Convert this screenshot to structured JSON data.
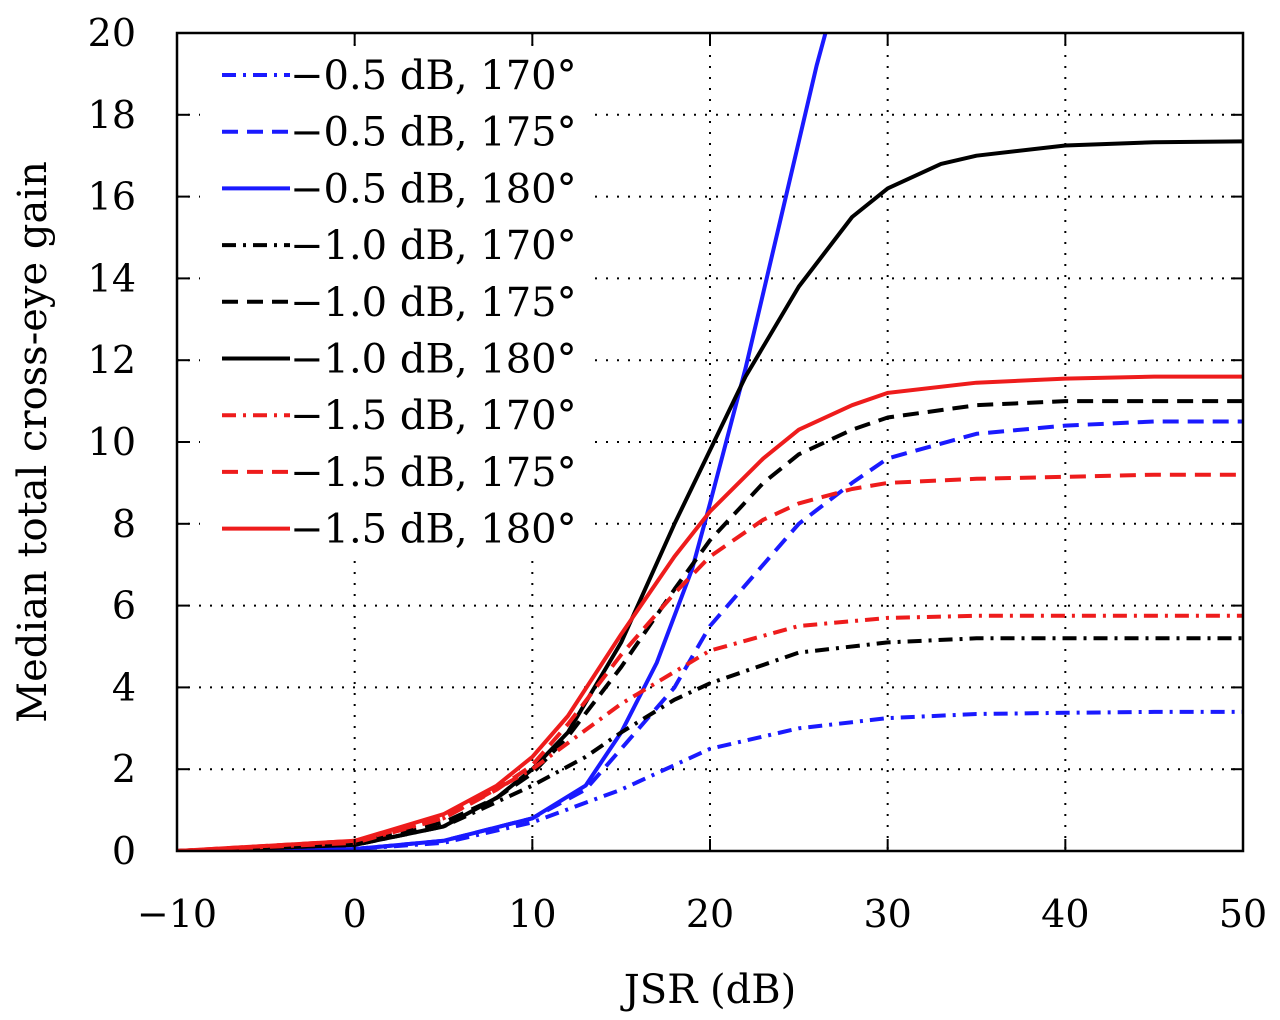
{
  "chart_data": {
    "type": "line",
    "title": "",
    "xlabel": "JSR (dB)",
    "ylabel": "Median total cross-eye gain",
    "xlim": [
      -10,
      50
    ],
    "ylim": [
      0,
      20
    ],
    "xticks": [
      -10,
      0,
      10,
      20,
      30,
      40,
      50
    ],
    "yticks": [
      0,
      2,
      4,
      6,
      8,
      10,
      12,
      14,
      16,
      18,
      20
    ],
    "xtick_labels": [
      "−10",
      "0",
      "10",
      "20",
      "30",
      "40",
      "50"
    ],
    "ytick_labels": [
      "0",
      "2",
      "4",
      "6",
      "8",
      "10",
      "12",
      "14",
      "16",
      "18",
      "20"
    ],
    "grid": true,
    "legend_position": "top-left",
    "colors": {
      "blue": "#1a1aff",
      "black": "#000000",
      "red": "#ee1c1c"
    },
    "series": [
      {
        "name": "−0.5 dB, 170°",
        "color": "#1a1aff",
        "style": "dashdot",
        "x": [
          -10,
          0,
          5,
          10,
          15,
          20,
          25,
          30,
          35,
          40,
          45,
          50
        ],
        "y": [
          0,
          0.05,
          0.2,
          0.7,
          1.5,
          2.5,
          3.0,
          3.25,
          3.35,
          3.38,
          3.4,
          3.4
        ]
      },
      {
        "name": "−0.5 dB, 175°",
        "color": "#1a1aff",
        "style": "dashed",
        "x": [
          -10,
          0,
          5,
          10,
          13,
          15,
          18,
          20,
          22,
          25,
          28,
          30,
          35,
          40,
          45,
          50
        ],
        "y": [
          0,
          0.05,
          0.25,
          0.8,
          1.5,
          2.5,
          4.0,
          5.5,
          6.5,
          8.0,
          9.0,
          9.6,
          10.2,
          10.4,
          10.5,
          10.5
        ]
      },
      {
        "name": "−0.5 dB, 180°",
        "color": "#1a1aff",
        "style": "solid",
        "x": [
          -10,
          0,
          5,
          10,
          13,
          15,
          17,
          19,
          20,
          22,
          24,
          26,
          26.5
        ],
        "y": [
          0,
          0.05,
          0.25,
          0.8,
          1.6,
          2.9,
          4.6,
          6.9,
          8.5,
          11.8,
          15.5,
          19.2,
          20
        ]
      },
      {
        "name": "−1.0 dB, 170°",
        "color": "#000000",
        "style": "dashdot",
        "x": [
          -10,
          0,
          5,
          10,
          13,
          15,
          18,
          20,
          25,
          30,
          35,
          40,
          45,
          50
        ],
        "y": [
          0,
          0.15,
          0.6,
          1.6,
          2.3,
          2.9,
          3.7,
          4.1,
          4.85,
          5.1,
          5.2,
          5.2,
          5.2,
          5.2
        ]
      },
      {
        "name": "−1.0 dB, 175°",
        "color": "#000000",
        "style": "dashed",
        "x": [
          -10,
          0,
          5,
          8,
          10,
          12,
          15,
          18,
          20,
          23,
          25,
          28,
          30,
          35,
          40,
          45,
          50
        ],
        "y": [
          0,
          0.2,
          0.7,
          1.3,
          1.9,
          2.8,
          4.5,
          6.4,
          7.6,
          9.0,
          9.7,
          10.3,
          10.6,
          10.9,
          11.0,
          11.0,
          11.0
        ]
      },
      {
        "name": "−1.0 dB, 180°",
        "color": "#000000",
        "style": "solid",
        "x": [
          -10,
          0,
          5,
          8,
          10,
          12,
          15,
          18,
          20,
          22,
          25,
          28,
          30,
          33,
          35,
          40,
          45,
          50
        ],
        "y": [
          0,
          0.15,
          0.6,
          1.3,
          2.0,
          2.9,
          5.1,
          8.0,
          9.8,
          11.6,
          13.8,
          15.5,
          16.2,
          16.8,
          17.0,
          17.25,
          17.33,
          17.35
        ]
      },
      {
        "name": "−1.5 dB, 170°",
        "color": "#ee1c1c",
        "style": "dashdot",
        "x": [
          -10,
          0,
          5,
          10,
          15,
          20,
          25,
          30,
          35,
          40,
          45,
          50
        ],
        "y": [
          0,
          0.2,
          0.8,
          2.0,
          3.6,
          4.9,
          5.5,
          5.7,
          5.75,
          5.75,
          5.75,
          5.75
        ]
      },
      {
        "name": "−1.5 dB, 175°",
        "color": "#ee1c1c",
        "style": "dashed",
        "x": [
          -10,
          0,
          5,
          8,
          10,
          12,
          15,
          18,
          20,
          23,
          25,
          28,
          30,
          35,
          40,
          45,
          50
        ],
        "y": [
          0,
          0.25,
          0.8,
          1.5,
          2.1,
          3.1,
          4.8,
          6.3,
          7.2,
          8.1,
          8.5,
          8.85,
          9.0,
          9.1,
          9.15,
          9.2,
          9.2
        ]
      },
      {
        "name": "−1.5 dB, 180°",
        "color": "#ee1c1c",
        "style": "solid",
        "x": [
          -10,
          0,
          5,
          8,
          10,
          12,
          15,
          18,
          20,
          23,
          25,
          28,
          30,
          35,
          40,
          45,
          50
        ],
        "y": [
          0,
          0.25,
          0.9,
          1.6,
          2.3,
          3.3,
          5.3,
          7.2,
          8.3,
          9.6,
          10.3,
          10.9,
          11.2,
          11.45,
          11.55,
          11.6,
          11.6
        ]
      }
    ]
  }
}
